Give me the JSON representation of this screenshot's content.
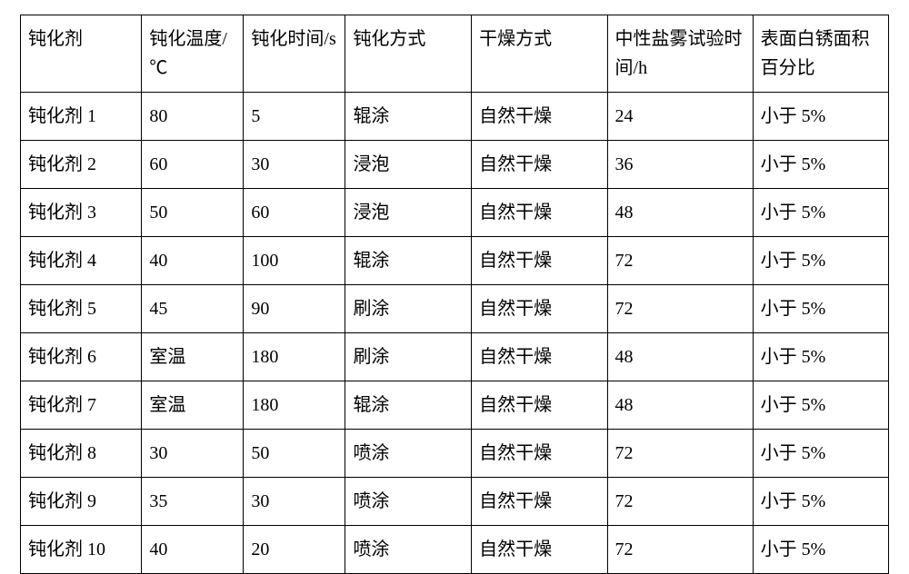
{
  "table": {
    "type": "table",
    "background_color": "#ffffff",
    "border_color": "#000000",
    "border_width": 1.5,
    "font_family": "SimSun",
    "header_fontsize": 20,
    "cell_fontsize": 20,
    "line_height": 1.6,
    "text_align": "left",
    "column_widths_pct": [
      12.5,
      10.5,
      10.5,
      13,
      14,
      15,
      14
    ],
    "columns": [
      "钝化剂",
      "钝化温度/℃",
      "钝化时间/s",
      "钝化方式",
      "干燥方式",
      "中性盐雾试验时间/h",
      "表面白锈面积百分比"
    ],
    "rows": [
      [
        "钝化剂 1",
        "80",
        "5",
        "辊涂",
        "自然干燥",
        "24",
        "小于 5%"
      ],
      [
        "钝化剂 2",
        "60",
        "30",
        "浸泡",
        "自然干燥",
        "36",
        "小于 5%"
      ],
      [
        "钝化剂 3",
        "50",
        "60",
        "浸泡",
        "自然干燥",
        "48",
        "小于 5%"
      ],
      [
        "钝化剂 4",
        "40",
        "100",
        "辊涂",
        "自然干燥",
        "72",
        "小于 5%"
      ],
      [
        "钝化剂 5",
        "45",
        "90",
        "刷涂",
        "自然干燥",
        "72",
        "小于 5%"
      ],
      [
        "钝化剂 6",
        "室温",
        "180",
        "刷涂",
        "自然干燥",
        "48",
        "小于 5%"
      ],
      [
        "钝化剂 7",
        "室温",
        "180",
        "辊涂",
        "自然干燥",
        "48",
        "小于 5%"
      ],
      [
        "钝化剂 8",
        "30",
        "50",
        "喷涂",
        "自然干燥",
        "72",
        "小于 5%"
      ],
      [
        "钝化剂 9",
        "35",
        "30",
        "喷涂",
        "自然干燥",
        "72",
        "小于 5%"
      ],
      [
        "钝化剂 10",
        "40",
        "20",
        "喷涂",
        "自然干燥",
        "72",
        "小于 5%"
      ]
    ]
  }
}
